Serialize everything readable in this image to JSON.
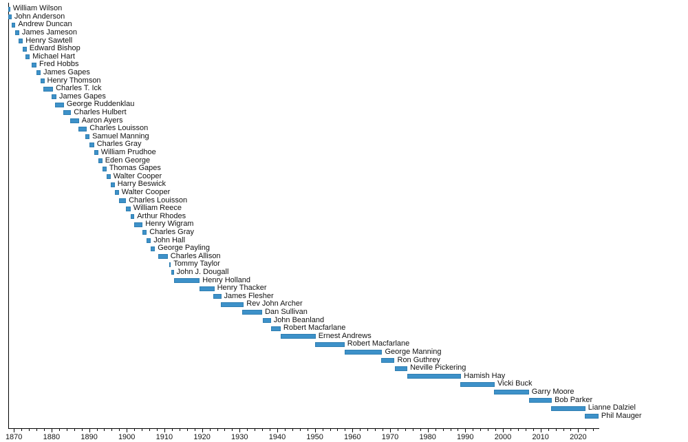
{
  "chart_data": {
    "type": "bar",
    "subtype": "horizontal-timeline-gantt",
    "title": "",
    "xlabel": "",
    "ylabel": "",
    "grid": false,
    "legend": "none",
    "xlim": [
      1868.5,
      2025.6
    ],
    "x_major_ticks": [
      1870,
      1880,
      1890,
      1900,
      1910,
      1920,
      1930,
      1940,
      1950,
      1960,
      1970,
      1980,
      1990,
      2000,
      2010,
      2020
    ],
    "x_minor_tick_step": 2,
    "bar_color": "#3d91c9",
    "bar_edge_color": "#2f7eb1",
    "text_color": "#111111",
    "axis_color": "#000000",
    "bars": [
      {
        "label": "William Wilson",
        "start": 1868.5,
        "end": 1869.0
      },
      {
        "label": "John Anderson",
        "start": 1868.5,
        "end": 1869.4
      },
      {
        "label": "Andrew Duncan",
        "start": 1869.4,
        "end": 1870.4
      },
      {
        "label": "James Jameson",
        "start": 1870.4,
        "end": 1871.4
      },
      {
        "label": "Henry Sawtell",
        "start": 1871.3,
        "end": 1872.4
      },
      {
        "label": "Edward Bishop",
        "start": 1872.3,
        "end": 1873.4
      },
      {
        "label": "Michael Hart",
        "start": 1873.0,
        "end": 1874.2
      },
      {
        "label": "Fred Hobbs",
        "start": 1874.8,
        "end": 1876.0
      },
      {
        "label": "James Gapes",
        "start": 1876.0,
        "end": 1877.1
      },
      {
        "label": "Henry Thomson",
        "start": 1877.0,
        "end": 1878.1
      },
      {
        "label": "Charles T. Ick",
        "start": 1877.9,
        "end": 1880.4
      },
      {
        "label": "James Gapes",
        "start": 1880.1,
        "end": 1881.3
      },
      {
        "label": "George Ruddenklau",
        "start": 1881.0,
        "end": 1883.3
      },
      {
        "label": "Charles Hulbert",
        "start": 1883.1,
        "end": 1885.2
      },
      {
        "label": "Aaron Ayers",
        "start": 1885.0,
        "end": 1887.3
      },
      {
        "label": "Charles Louisson",
        "start": 1887.1,
        "end": 1889.4
      },
      {
        "label": "Samuel Manning",
        "start": 1888.9,
        "end": 1890.1
      },
      {
        "label": "Charles Gray",
        "start": 1890.1,
        "end": 1891.3
      },
      {
        "label": "William Prudhoe",
        "start": 1891.3,
        "end": 1892.4
      },
      {
        "label": "Eden George",
        "start": 1892.4,
        "end": 1893.5
      },
      {
        "label": "Thomas Gapes",
        "start": 1893.5,
        "end": 1894.6
      },
      {
        "label": "Walter Cooper",
        "start": 1894.6,
        "end": 1895.7
      },
      {
        "label": "Harry Beswick",
        "start": 1895.7,
        "end": 1896.8
      },
      {
        "label": "Walter Cooper",
        "start": 1896.8,
        "end": 1897.9
      },
      {
        "label": "Charles Louisson",
        "start": 1897.9,
        "end": 1899.8
      },
      {
        "label": "William Reece",
        "start": 1899.8,
        "end": 1901.0
      },
      {
        "label": "Arthur Rhodes",
        "start": 1901.0,
        "end": 1902.0
      },
      {
        "label": "Henry Wigram",
        "start": 1902.0,
        "end": 1904.2
      },
      {
        "label": "Charles Gray",
        "start": 1904.2,
        "end": 1905.3
      },
      {
        "label": "John Hall",
        "start": 1905.3,
        "end": 1906.4
      },
      {
        "label": "George Payling",
        "start": 1906.4,
        "end": 1907.5
      },
      {
        "label": "Charles Allison",
        "start": 1908.4,
        "end": 1910.9
      },
      {
        "label": "Tommy Taylor",
        "start": 1911.2,
        "end": 1911.7
      },
      {
        "label": "John J. Dougall",
        "start": 1911.8,
        "end": 1912.5
      },
      {
        "label": "Henry Holland",
        "start": 1912.5,
        "end": 1919.4
      },
      {
        "label": "Henry Thacker",
        "start": 1919.4,
        "end": 1923.3
      },
      {
        "label": "James Flesher",
        "start": 1923.0,
        "end": 1925.1
      },
      {
        "label": "Rev John Archer",
        "start": 1925.0,
        "end": 1931.1
      },
      {
        "label": "Dan Sullivan",
        "start": 1930.6,
        "end": 1936.0
      },
      {
        "label": "John Beanland",
        "start": 1936.2,
        "end": 1938.3
      },
      {
        "label": "Robert Macfarlane",
        "start": 1938.3,
        "end": 1940.9
      },
      {
        "label": "Ernest Andrews",
        "start": 1941.0,
        "end": 1950.2
      },
      {
        "label": "Robert Macfarlane",
        "start": 1950.0,
        "end": 1957.9
      },
      {
        "label": "George Manning",
        "start": 1957.9,
        "end": 1967.9
      },
      {
        "label": "Ron Guthrey",
        "start": 1967.7,
        "end": 1971.2
      },
      {
        "label": "Neville Pickering",
        "start": 1971.2,
        "end": 1974.6
      },
      {
        "label": "Hamish Hay",
        "start": 1974.6,
        "end": 1988.9
      },
      {
        "label": "Vicki Buck",
        "start": 1988.7,
        "end": 1997.8
      },
      {
        "label": "Garry Moore",
        "start": 1997.6,
        "end": 2006.9
      },
      {
        "label": "Bob Parker",
        "start": 2006.9,
        "end": 2013.0
      },
      {
        "label": "Lianne Dalziel",
        "start": 2012.8,
        "end": 2021.9
      },
      {
        "label": "Phil Mauger",
        "start": 2021.7,
        "end": 2025.4
      }
    ]
  }
}
